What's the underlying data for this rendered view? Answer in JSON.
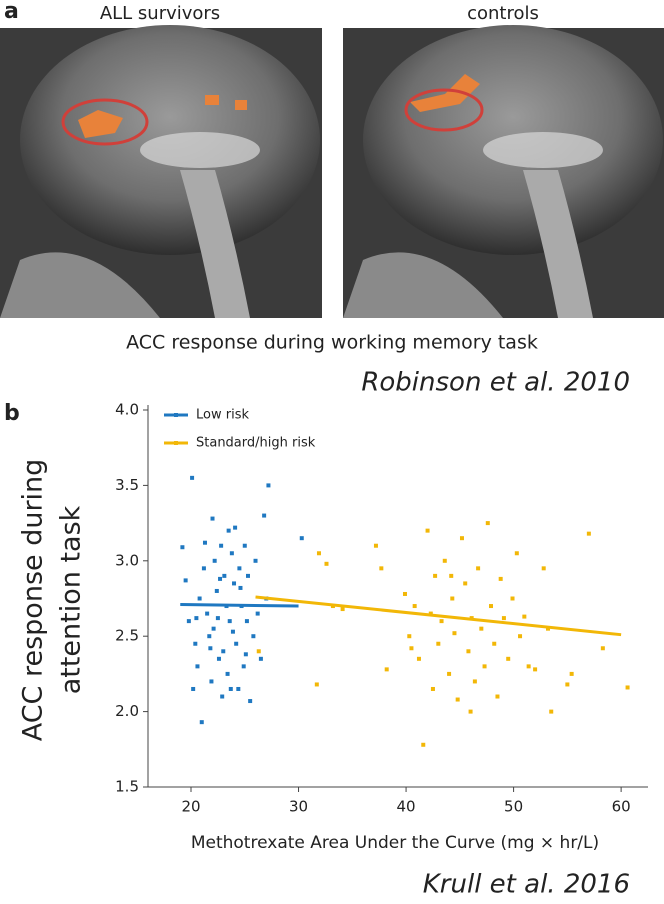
{
  "panel_a": {
    "label": "a",
    "images": [
      {
        "title": "ALL survivors"
      },
      {
        "title": "controls"
      }
    ],
    "caption": "ACC response during working memory task",
    "citation": "Robinson et al. 2010"
  },
  "panel_b": {
    "label": "b",
    "citation": "Krull et al. 2016"
  },
  "chart_data": {
    "type": "scatter",
    "xlabel": "Methotrexate Area Under the Curve (mg × hr/L)",
    "ylabel": [
      "ACC response during",
      "attention task"
    ],
    "xlim": [
      16,
      62.5
    ],
    "ylim": [
      1.5,
      4.0
    ],
    "xticks": [
      20,
      30,
      40,
      50,
      60
    ],
    "yticks": [
      1.5,
      {
        "value": 2,
        "label": "2.0"
      },
      2.5,
      {
        "value": 3,
        "label": "3.0"
      },
      3.5,
      {
        "value": 4,
        "label": "4.0"
      }
    ],
    "legend": "upper left",
    "series": [
      {
        "name": "Low risk",
        "color": "#1f78c1",
        "x": [
          19.2,
          19.5,
          20.1,
          19.8,
          20.4,
          20.6,
          20.2,
          21.0,
          20.8,
          21.2,
          21.5,
          21.7,
          21.9,
          22.0,
          22.2,
          22.4,
          22.1,
          22.6,
          22.8,
          22.9,
          23.1,
          23.3,
          23.0,
          23.5,
          23.6,
          23.4,
          23.8,
          24.0,
          24.2,
          24.4,
          24.5,
          24.7,
          24.9,
          25.0,
          25.2,
          25.5,
          25.3,
          25.8,
          26.0,
          26.5,
          26.8,
          27.2,
          27.0,
          22.5,
          23.9,
          21.3,
          24.1,
          25.1,
          20.5,
          22.7,
          23.7,
          24.6,
          21.8,
          26.2,
          30.3
        ],
        "y": [
          3.09,
          2.87,
          3.55,
          2.6,
          2.45,
          2.3,
          2.15,
          1.93,
          2.75,
          2.95,
          2.65,
          2.5,
          2.2,
          3.28,
          3.0,
          2.8,
          2.55,
          2.35,
          3.1,
          2.1,
          2.9,
          2.7,
          2.4,
          3.2,
          2.6,
          2.25,
          3.05,
          2.85,
          2.45,
          2.15,
          2.95,
          2.7,
          2.3,
          3.1,
          2.6,
          2.07,
          2.9,
          2.5,
          3.0,
          2.35,
          3.3,
          3.5,
          2.75,
          2.62,
          2.53,
          3.12,
          3.22,
          2.38,
          2.62,
          2.88,
          2.15,
          2.82,
          2.42,
          2.65,
          3.15
        ],
        "trend": {
          "x": [
            19,
            30
          ],
          "y": [
            2.71,
            2.7
          ]
        }
      },
      {
        "name": "Standard/high risk",
        "color": "#f2b707",
        "x": [
          26.3,
          31.9,
          31.7,
          32.6,
          33.2,
          34.1,
          37.2,
          37.7,
          38.2,
          39.9,
          40.3,
          40.8,
          41.2,
          41.6,
          42.0,
          42.3,
          42.5,
          42.7,
          43.0,
          43.3,
          43.6,
          44.0,
          44.3,
          44.5,
          44.8,
          45.2,
          45.5,
          45.8,
          46.1,
          46.4,
          46.7,
          47.0,
          47.3,
          47.6,
          47.9,
          48.2,
          48.5,
          48.8,
          49.1,
          49.5,
          49.9,
          50.3,
          50.6,
          51.0,
          51.4,
          52.0,
          52.8,
          53.2,
          53.5,
          55.0,
          55.4,
          57.0,
          58.3,
          60.6,
          40.5,
          46.0,
          44.2
        ],
        "y": [
          2.4,
          3.05,
          2.18,
          2.98,
          2.7,
          2.68,
          3.1,
          2.95,
          2.28,
          2.78,
          2.5,
          2.7,
          2.35,
          1.78,
          3.2,
          2.65,
          2.15,
          2.9,
          2.45,
          2.6,
          3.0,
          2.25,
          2.75,
          2.52,
          2.08,
          3.15,
          2.85,
          2.4,
          2.62,
          2.2,
          2.95,
          2.55,
          2.3,
          3.25,
          2.7,
          2.45,
          2.1,
          2.88,
          2.62,
          2.35,
          2.75,
          3.05,
          2.5,
          2.63,
          2.3,
          2.28,
          2.95,
          2.55,
          2.0,
          2.18,
          2.25,
          3.18,
          2.42,
          2.16,
          2.42,
          2.0,
          2.9
        ],
        "trend": {
          "x": [
            26,
            60
          ],
          "y": [
            2.76,
            2.51
          ]
        }
      }
    ]
  }
}
